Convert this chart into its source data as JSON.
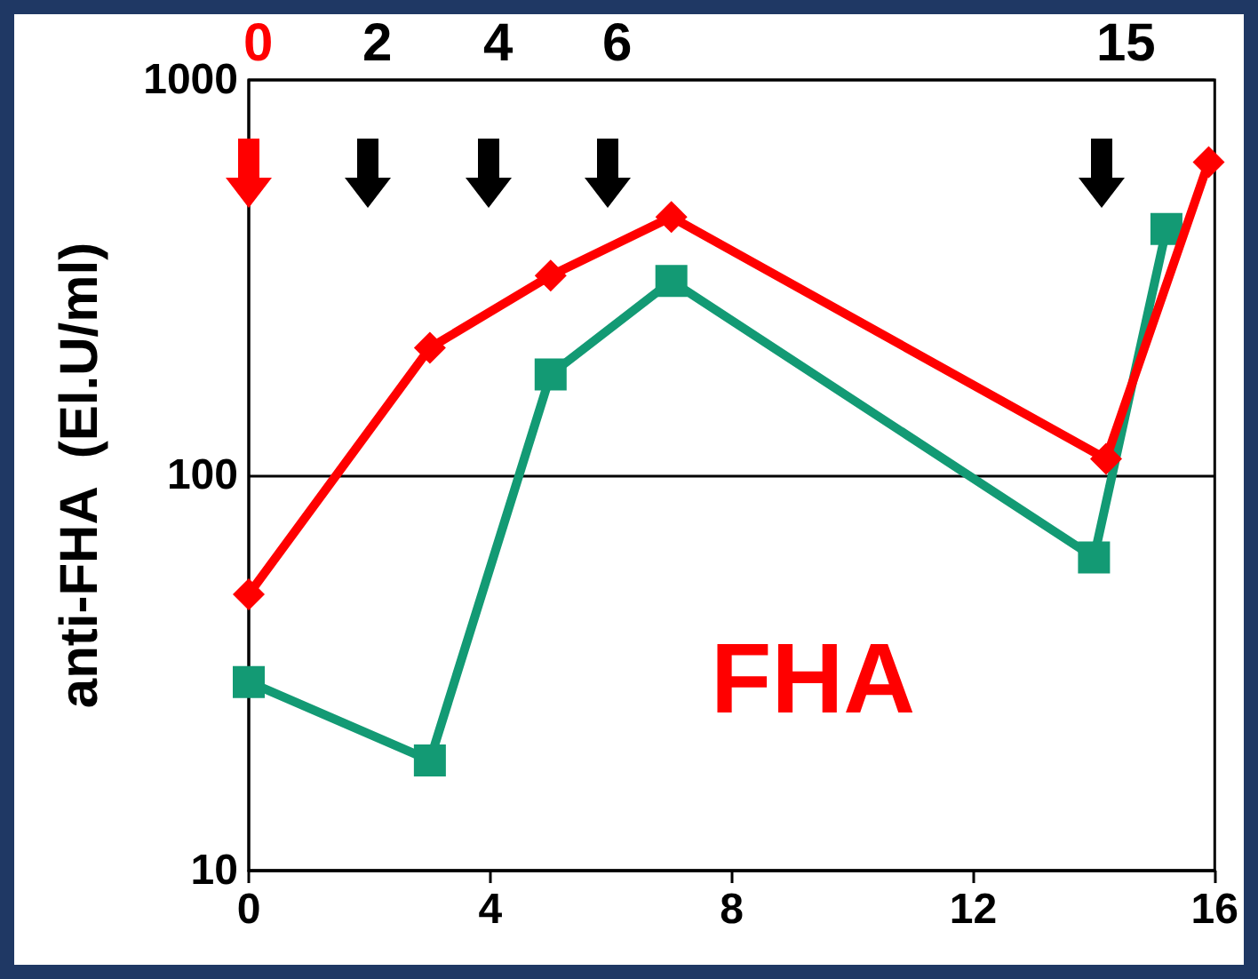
{
  "chart_data": {
    "type": "line",
    "ylabel": "anti-FHA  (El.U/ml)",
    "series": [
      {
        "color": "#ff0000",
        "marker": "diamond",
        "x": [
          0,
          3,
          5,
          7,
          14.2,
          15.9
        ],
        "values": [
          50,
          210,
          320,
          450,
          110,
          620
        ]
      },
      {
        "color": "#139a74",
        "marker": "square",
        "x": [
          0,
          3,
          5,
          7,
          14,
          15.2
        ],
        "values": [
          30,
          19,
          180,
          310,
          62,
          420
        ]
      }
    ],
    "xlim": [
      0,
      16
    ],
    "xticks": [
      0,
      4,
      8,
      12,
      16
    ],
    "ylim": [
      10,
      1000
    ],
    "yticks": [
      10,
      100,
      1000
    ],
    "log": true,
    "grid": "y",
    "annotations": [
      "0",
      "2",
      "4",
      "6",
      "15",
      "FHA"
    ]
  }
}
